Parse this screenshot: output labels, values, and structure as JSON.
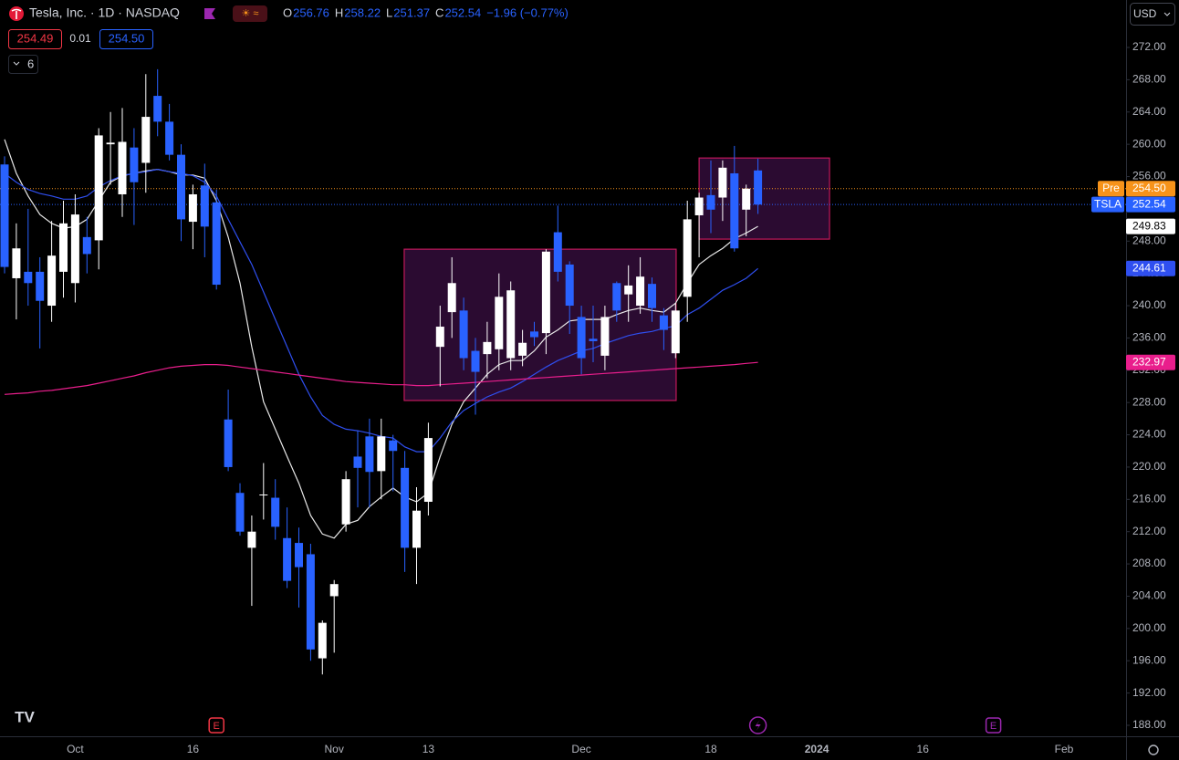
{
  "header": {
    "title": "Tesla, Inc. · 1D · NASDAQ",
    "ohlc": [
      {
        "key": "O",
        "value": "256.76"
      },
      {
        "key": "H",
        "value": "258.22"
      },
      {
        "key": "L",
        "value": "251.37"
      },
      {
        "key": "C",
        "value": "252.54"
      }
    ],
    "change": "−1.96 (−0.77%)",
    "bid": "254.49",
    "spread": "0.01",
    "ask": "254.50",
    "indicators": "6",
    "currency": "USD"
  },
  "chart_data": {
    "type": "candlestick",
    "categories": [
      null,
      null,
      null,
      null,
      null,
      null,
      "Oct",
      null,
      null,
      null,
      null,
      null,
      null,
      null,
      null,
      null,
      "16",
      null,
      null,
      null,
      null,
      null,
      null,
      null,
      null,
      null,
      null,
      null,
      "Nov",
      null,
      null,
      null,
      null,
      null,
      null,
      null,
      "13",
      null,
      null,
      null,
      null,
      null,
      null,
      null,
      null,
      null,
      null,
      null,
      null,
      "Dec",
      null,
      null,
      null,
      null,
      null,
      null,
      null,
      null,
      null,
      null,
      "18",
      null,
      null,
      null,
      null,
      null,
      null,
      null,
      null,
      "2024",
      null,
      null,
      null,
      null,
      null,
      null,
      null,
      null,
      "16",
      null,
      null,
      null,
      null,
      null,
      null,
      null,
      null,
      null,
      null,
      null,
      "Feb",
      null,
      null,
      null,
      null,
      null
    ],
    "open": [
      257.5,
      243.4,
      244.2,
      244.2,
      240.0,
      244.2,
      242.8,
      248.5,
      248.1,
      260.0,
      253.8,
      259.6,
      257.7,
      266.0,
      262.8,
      258.7,
      250.4,
      254.9,
      252.8,
      225.9,
      216.8,
      210.0,
      216.5,
      216.2,
      211.2,
      210.6,
      209.2,
      196.3,
      204.0,
      212.9,
      221.3,
      223.8,
      219.5,
      223.3,
      219.9,
      210.0,
      215.7,
      234.9,
      239.2,
      239.4,
      234.4,
      234.0,
      234.6,
      233.5,
      233.8,
      236.8,
      236.6,
      249.1,
      245.1,
      238.6,
      235.9,
      233.8,
      242.8,
      241.4,
      240.0,
      242.7,
      238.8,
      234.1,
      241.1,
      251.2,
      253.7,
      253.4,
      256.4,
      251.9,
      256.76,
      null,
      null,
      null,
      null,
      null,
      null,
      null,
      null,
      null,
      null,
      null,
      null,
      null,
      null,
      null,
      null,
      null,
      null,
      null,
      null,
      null,
      null,
      null,
      null,
      null,
      null,
      null,
      null,
      null,
      null,
      null
    ],
    "high": [
      258.5,
      250.2,
      252,
      246,
      250.5,
      253,
      253.8,
      251,
      262,
      264,
      264.5,
      262,
      268.7,
      269.3,
      265,
      260,
      255,
      257.6,
      254.4,
      229.6,
      218,
      214,
      220.5,
      218.5,
      215,
      212.5,
      210.5,
      201,
      206,
      219.5,
      224.5,
      226,
      226,
      224,
      222,
      217.5,
      225.5,
      240,
      246,
      241,
      236,
      238,
      244,
      243,
      237,
      238,
      247,
      252.4,
      245.5,
      240,
      240,
      240,
      243,
      245,
      246,
      243.5,
      239.7,
      240.3,
      253,
      254,
      258,
      258,
      259.8,
      255,
      258.22,
      null,
      null,
      null,
      null,
      null,
      null,
      null,
      null,
      null,
      null,
      null,
      null,
      null,
      null,
      null,
      null,
      null,
      null,
      null,
      null,
      null,
      null,
      null,
      null,
      null,
      null,
      null,
      null,
      null,
      null,
      null
    ],
    "low": [
      244,
      238.3,
      240,
      234.7,
      238,
      241,
      240.4,
      244,
      244.5,
      255,
      251,
      250,
      254,
      261,
      258,
      248,
      247,
      246,
      242,
      219.5,
      211.5,
      202.8,
      213.5,
      211,
      205,
      202.6,
      196,
      194.3,
      197,
      212,
      215,
      215,
      216,
      217,
      207,
      205.5,
      214,
      230,
      236,
      232,
      226.5,
      231,
      232,
      232,
      232.5,
      235,
      234,
      243,
      236.5,
      231.5,
      233,
      232,
      238,
      238,
      239,
      238,
      234.5,
      233.5,
      238,
      246,
      249,
      250.5,
      246.7,
      248.6,
      251.37,
      null,
      null,
      null,
      null,
      null,
      null,
      null,
      null,
      null,
      null,
      null,
      null,
      null,
      null,
      null,
      null,
      null,
      null,
      null,
      null,
      null,
      null,
      null,
      null,
      null,
      null,
      null,
      null,
      null,
      null,
      null
    ],
    "close": [
      244.8,
      247.1,
      242.8,
      240.6,
      246.2,
      250.2,
      251.3,
      246.4,
      261.1,
      260.2,
      260.3,
      255.3,
      263.4,
      262.8,
      258.7,
      250.7,
      253.8,
      249.8,
      242.6,
      220.0,
      212.0,
      212.0,
      216.6,
      212.6,
      205.9,
      207.6,
      197.4,
      200.7,
      205.5,
      218.5,
      219.9,
      219.4,
      223.8,
      222.0,
      210.0,
      214.6,
      223.6,
      237.4,
      242.8,
      233.5,
      231.8,
      235.5,
      241.1,
      241.9,
      235.4,
      236.1,
      246.7,
      244.2,
      240.0,
      233.5,
      235.6,
      238.6,
      239.4,
      242.5,
      243.6,
      239.7,
      237.0,
      239.4,
      250.7,
      253.4,
      251.9,
      257.1,
      247.1,
      254.5,
      252.54,
      null,
      null,
      null,
      null,
      null,
      null,
      null,
      null,
      null,
      null,
      null,
      null,
      null,
      null,
      null,
      null,
      null,
      null,
      null,
      null,
      null,
      null,
      null,
      null,
      null,
      null,
      null,
      null,
      null,
      null,
      null
    ],
    "up_color": "#ffffff",
    "down_color": "#2962ff",
    "lines": [
      {
        "color": "#e8e8e8",
        "values": [
          260.6,
          256.4,
          253.6,
          251.3,
          250.2,
          249.6,
          249.8,
          250.7,
          253,
          255.3,
          256.1,
          256.4,
          256.7,
          256.9,
          256.6,
          256.2,
          256.2,
          255.8,
          253,
          248.5,
          242.8,
          234.9,
          228.1,
          224.7,
          221.3,
          218,
          214,
          211.7,
          211.2,
          212.9,
          213.4,
          215.1,
          216.3,
          217.4,
          216.3,
          215.7,
          216.8,
          221.3,
          225.3,
          228.1,
          229.8,
          231.5,
          232.7,
          233.2,
          233.2,
          234.4,
          236.1,
          237,
          238.1,
          238.3,
          238.3,
          238.3,
          238.9,
          239.4,
          239.7,
          239.4,
          239.2,
          240.3,
          242.8,
          245.1,
          246.2,
          247.1,
          248.3,
          249,
          249.83,
          null,
          null,
          null,
          null,
          null,
          null,
          null,
          null,
          null,
          null,
          null,
          null,
          null,
          null,
          null,
          null,
          null,
          null,
          null,
          null,
          null,
          null,
          null,
          null,
          null,
          null,
          null,
          null,
          null,
          null,
          null
        ]
      },
      {
        "color": "#2f4ff0",
        "values": [
          256.4,
          255.3,
          254.4,
          253.9,
          253.6,
          253.2,
          253.2,
          253.6,
          254.7,
          255.5,
          256.1,
          256.4,
          256.6,
          256.9,
          256.6,
          256.4,
          256.1,
          255.3,
          253.6,
          250.7,
          247.9,
          245.1,
          241.7,
          238.3,
          234.9,
          231.5,
          228.7,
          226.4,
          225.3,
          224.7,
          224.5,
          224.2,
          223.8,
          223.6,
          222.5,
          221.9,
          221.9,
          223.6,
          225.6,
          227,
          227.9,
          228.7,
          229.3,
          229.8,
          230.6,
          231.5,
          232.4,
          233.2,
          233.8,
          234.4,
          234.7,
          235.3,
          235.8,
          236.3,
          236.6,
          236.8,
          237.2,
          237.5,
          238.9,
          239.7,
          240.8,
          241.9,
          242.6,
          243.4,
          244.61,
          null,
          null,
          null,
          null,
          null,
          null,
          null,
          null,
          null,
          null,
          null,
          null,
          null,
          null,
          null,
          null,
          null,
          null,
          null,
          null,
          null,
          null,
          null,
          null,
          null,
          null,
          null,
          null,
          null,
          null,
          null
        ]
      },
      {
        "color": "#e91e8c",
        "values": [
          229.0,
          229.1,
          229.2,
          229.4,
          229.5,
          229.7,
          229.9,
          230.1,
          230.4,
          230.7,
          231.0,
          231.3,
          231.7,
          232.0,
          232.3,
          232.5,
          232.6,
          232.7,
          232.7,
          232.6,
          232.4,
          232.2,
          232.0,
          231.8,
          231.6,
          231.4,
          231.2,
          231.0,
          230.8,
          230.6,
          230.5,
          230.4,
          230.3,
          230.2,
          230.2,
          230.1,
          230.1,
          230.2,
          230.3,
          230.4,
          230.5,
          230.6,
          230.7,
          230.8,
          230.9,
          231.0,
          231.1,
          231.2,
          231.3,
          231.4,
          231.5,
          231.6,
          231.7,
          231.8,
          231.9,
          232.0,
          232.1,
          232.2,
          232.3,
          232.4,
          232.5,
          232.6,
          232.7,
          232.85,
          232.97,
          null,
          null,
          null,
          null,
          null,
          null,
          null,
          null,
          null,
          null,
          null,
          null,
          null,
          null,
          null,
          null,
          null,
          null,
          null,
          null,
          null,
          null,
          null,
          null,
          null,
          null,
          null,
          null,
          null,
          null,
          null
        ]
      }
    ],
    "boxes": [
      {
        "x0": 33.95,
        "x1": 57.05,
        "y0": 228.25,
        "y1": 247.0
      },
      {
        "x0": 59.0,
        "x1": 70.08,
        "y0": 248.25,
        "y1": 258.3
      }
    ],
    "ylim": [
      186.64,
      277.88
    ],
    "yticks": [
      {
        "value": 188,
        "label": "188.00"
      },
      {
        "value": 192,
        "label": "192.00"
      },
      {
        "value": 196,
        "label": "196.00"
      },
      {
        "value": 200,
        "label": "200.00"
      },
      {
        "value": 204,
        "label": "204.00"
      },
      {
        "value": 208,
        "label": "208.00"
      },
      {
        "value": 212,
        "label": "212.00"
      },
      {
        "value": 216,
        "label": "216.00"
      },
      {
        "value": 220,
        "label": "220.00"
      },
      {
        "value": 224,
        "label": "224.00"
      },
      {
        "value": 228,
        "label": "228.00"
      },
      {
        "value": 232,
        "label": "232.00"
      },
      {
        "value": 236,
        "label": "236.00"
      },
      {
        "value": 240,
        "label": "240.00"
      },
      {
        "value": 244,
        "label": "244.00"
      },
      {
        "value": 248,
        "label": "248.00"
      },
      {
        "value": 252,
        "label": "252.00"
      },
      {
        "value": 256,
        "label": "256.00"
      },
      {
        "value": 260,
        "label": "260.00"
      },
      {
        "value": 264,
        "label": "264.00"
      },
      {
        "value": 268,
        "label": "268.00"
      },
      {
        "value": 272,
        "label": "272.00"
      }
    ],
    "price_labels": [
      {
        "tag": "Pre",
        "value": 254.5,
        "label": "254.50",
        "color": "#f7931a",
        "line": "dotted"
      },
      {
        "tag": "TSLA",
        "value": 252.54,
        "label": "252.54",
        "color": "#2962ff",
        "line": "dotted"
      },
      {
        "value": 249.83,
        "label": "249.83",
        "color": "#ffffff"
      },
      {
        "value": 244.61,
        "label": "244.61",
        "color": "#2f4ff0"
      },
      {
        "value": 232.97,
        "label": "232.97",
        "color": "#e91e8c"
      }
    ],
    "events": [
      {
        "label": "E",
        "at": 18,
        "color": "#f23645"
      },
      {
        "icon": "lightning",
        "at": 64,
        "color": "#9c27b0"
      },
      {
        "label": "E",
        "at": 84,
        "color": "#9c27b0"
      }
    ]
  }
}
